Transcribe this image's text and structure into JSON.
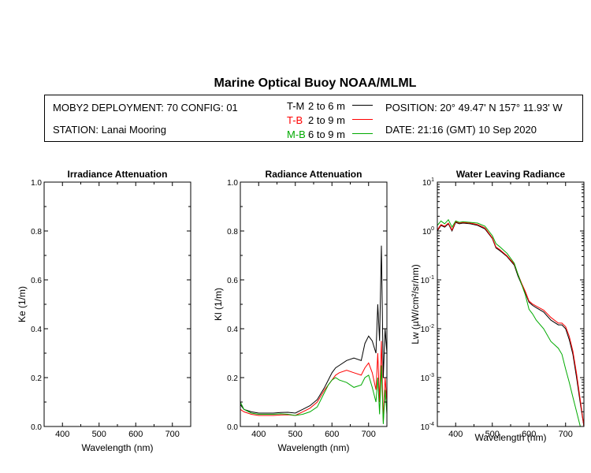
{
  "title": "Marine Optical Buoy NOAA/MLML",
  "info": {
    "deployment": "MOBY2 DEPLOYMENT: 70 CONFIG: 01",
    "station": "STATION: Lanai Mooring",
    "position": "POSITION: 20° 49.47' N   157° 11.93' W",
    "date": "DATE: 21:16 (GMT) 10 Sep 2020"
  },
  "legend": [
    {
      "code": "T-M",
      "range": "2 to 6  m",
      "color": "#000000"
    },
    {
      "code": "T-B",
      "range": "2 to 9  m",
      "color": "#ff0000"
    },
    {
      "code": "M-B",
      "range": "6 to 9  m",
      "color": "#00aa00"
    }
  ],
  "chart_data": [
    {
      "type": "line",
      "title": "Irradiance Attenuation",
      "xlabel": "Wavelength (nm)",
      "ylabel": "Ke  (1/m)",
      "xlim": [
        350,
        750
      ],
      "ylim": [
        0,
        1.0
      ],
      "xticks": [
        400,
        500,
        600,
        700
      ],
      "yticks": [
        "0.0",
        "0.2",
        "0.4",
        "0.6",
        "0.8",
        "1.0"
      ],
      "series": []
    },
    {
      "type": "line",
      "title": "Radiance Attenuation",
      "xlabel": "Wavelength (nm)",
      "ylabel": "Kl  (1/m)",
      "xlim": [
        350,
        750
      ],
      "ylim": [
        0,
        1.0
      ],
      "xticks": [
        400,
        500,
        600,
        700
      ],
      "yticks": [
        "0.0",
        "0.2",
        "0.4",
        "0.6",
        "0.8",
        "1.0"
      ],
      "series": [
        {
          "name": "T-M",
          "color": "#000000",
          "x": [
            350,
            360,
            380,
            400,
            420,
            440,
            460,
            480,
            500,
            520,
            540,
            560,
            580,
            590,
            600,
            610,
            620,
            640,
            660,
            680,
            690,
            700,
            710,
            720,
            725,
            730,
            735,
            740,
            745,
            750
          ],
          "y": [
            0.09,
            0.07,
            0.06,
            0.055,
            0.055,
            0.055,
            0.057,
            0.058,
            0.055,
            0.07,
            0.085,
            0.11,
            0.16,
            0.19,
            0.22,
            0.24,
            0.25,
            0.27,
            0.28,
            0.27,
            0.34,
            0.37,
            0.35,
            0.3,
            0.5,
            0.35,
            0.74,
            0.2,
            0.4,
            0.3
          ]
        },
        {
          "name": "T-B",
          "color": "#ff0000",
          "x": [
            350,
            360,
            380,
            400,
            420,
            440,
            460,
            480,
            500,
            520,
            540,
            560,
            580,
            590,
            600,
            610,
            620,
            640,
            660,
            680,
            690,
            700,
            710,
            720,
            725,
            730,
            735,
            740,
            745,
            750
          ],
          "y": [
            0.07,
            0.06,
            0.05,
            0.045,
            0.045,
            0.045,
            0.047,
            0.048,
            0.045,
            0.06,
            0.075,
            0.1,
            0.15,
            0.17,
            0.19,
            0.21,
            0.22,
            0.23,
            0.22,
            0.21,
            0.24,
            0.26,
            0.22,
            0.15,
            0.3,
            0.1,
            0.35,
            0.02,
            0.2,
            0.1
          ]
        },
        {
          "name": "M-B",
          "color": "#00aa00",
          "x": [
            350,
            360,
            380,
            400,
            420,
            440,
            460,
            480,
            500,
            520,
            540,
            560,
            580,
            590,
            600,
            610,
            620,
            640,
            660,
            680,
            690,
            700,
            710,
            720,
            725,
            730,
            735,
            740,
            745,
            750
          ],
          "y": [
            0.1,
            0.07,
            0.055,
            0.05,
            0.05,
            0.05,
            0.052,
            0.05,
            0.045,
            0.05,
            0.06,
            0.08,
            0.14,
            0.17,
            0.19,
            0.2,
            0.19,
            0.18,
            0.16,
            0.17,
            0.2,
            0.21,
            0.16,
            0.1,
            0.2,
            0.05,
            0.25,
            0.01,
            0.15,
            0.05
          ]
        }
      ]
    },
    {
      "type": "line",
      "title": "Water Leaving Radiance",
      "xlabel": "Wavelength (nm)",
      "ylabel": "Lw  (µW/cm²/sr/nm)",
      "xlim": [
        350,
        750
      ],
      "ylim": [
        0.0001,
        10
      ],
      "yscale": "log",
      "xticks": [
        400,
        500,
        600,
        700
      ],
      "series": [
        {
          "name": "T-M",
          "color": "#000000",
          "x": [
            350,
            360,
            370,
            380,
            390,
            400,
            410,
            420,
            440,
            460,
            480,
            500,
            510,
            520,
            540,
            560,
            570,
            580,
            590,
            600,
            610,
            620,
            640,
            660,
            680,
            690,
            700,
            710,
            720,
            730,
            740,
            750
          ],
          "y": [
            1.0,
            1.3,
            1.2,
            1.4,
            1.0,
            1.5,
            1.4,
            1.45,
            1.4,
            1.3,
            1.1,
            0.7,
            0.45,
            0.4,
            0.3,
            0.2,
            0.12,
            0.08,
            0.055,
            0.035,
            0.03,
            0.027,
            0.022,
            0.015,
            0.012,
            0.012,
            0.01,
            0.006,
            0.003,
            0.001,
            0.0003,
            0.0001
          ]
        },
        {
          "name": "T-B",
          "color": "#ff0000",
          "x": [
            350,
            360,
            370,
            380,
            390,
            400,
            410,
            420,
            440,
            460,
            480,
            500,
            510,
            520,
            540,
            560,
            570,
            580,
            590,
            600,
            610,
            620,
            640,
            660,
            680,
            690,
            700,
            710,
            720,
            730,
            740,
            750
          ],
          "y": [
            1.05,
            1.35,
            1.25,
            1.45,
            1.05,
            1.55,
            1.45,
            1.5,
            1.45,
            1.35,
            1.15,
            0.72,
            0.47,
            0.42,
            0.31,
            0.21,
            0.13,
            0.085,
            0.058,
            0.037,
            0.032,
            0.029,
            0.024,
            0.017,
            0.013,
            0.013,
            0.011,
            0.007,
            0.0035,
            0.0012,
            0.00035,
            0.0001
          ]
        },
        {
          "name": "M-B",
          "color": "#00aa00",
          "x": [
            350,
            360,
            370,
            380,
            390,
            400,
            410,
            420,
            440,
            460,
            480,
            500,
            510,
            520,
            540,
            560,
            570,
            580,
            590,
            600,
            610,
            620,
            640,
            660,
            680,
            690,
            700,
            710,
            720,
            730,
            740,
            750
          ],
          "y": [
            1.3,
            1.6,
            1.4,
            1.7,
            1.2,
            1.6,
            1.5,
            1.55,
            1.5,
            1.45,
            1.25,
            0.8,
            0.55,
            0.48,
            0.35,
            0.22,
            0.13,
            0.08,
            0.05,
            0.025,
            0.02,
            0.015,
            0.01,
            0.0055,
            0.004,
            0.003,
            0.0015,
            0.0008,
            0.0004,
            0.0002,
            0.0001,
            0.0001
          ]
        }
      ]
    }
  ]
}
